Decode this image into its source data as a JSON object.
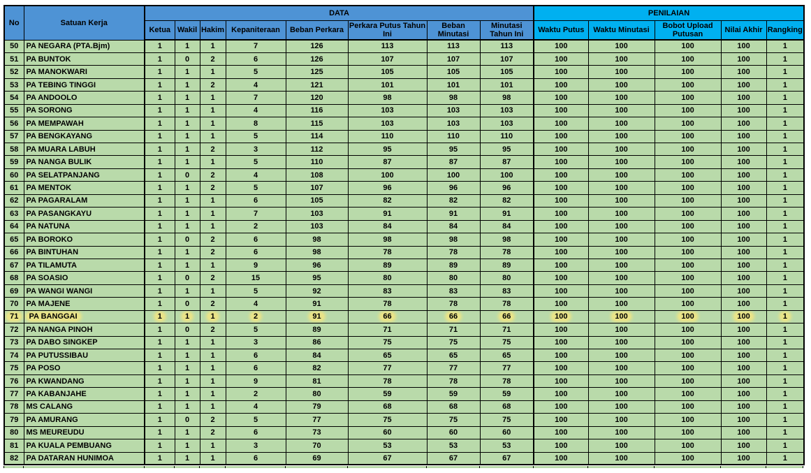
{
  "colors": {
    "header_blue": "#4E93D5",
    "penilaian_cyan": "#00B0F0",
    "row_green": "#B9DAAA",
    "highlight_yellow": "#E9E388",
    "border_black": "#000000"
  },
  "table": {
    "header": {
      "no": "No",
      "satuan_kerja": "Satuan Kerja",
      "data_group": "DATA",
      "penilaian_group": "PENILAIAN",
      "data_cols": [
        "Ketua",
        "Wakil",
        "Hakim",
        "Kepaniteraan",
        "Beban Perkara",
        "Perkara Putus Tahun Ini",
        "Beban Minutasi",
        "Minutasi Tahun Ini"
      ],
      "penilaian_cols": [
        "Waktu Putus",
        "Waktu Minutasi",
        "Bobot Upload Putusan",
        "Nilai Akhir",
        "Rangking"
      ]
    },
    "highlighted_row_no": "71",
    "rows": [
      {
        "no": "50",
        "satuan_kerja": "PA NEGARA (PTA.Bjm)",
        "values": [
          1,
          1,
          1,
          7,
          126,
          113,
          113,
          113,
          100,
          100,
          100,
          100,
          1
        ]
      },
      {
        "no": "51",
        "satuan_kerja": "PA BUNTOK",
        "values": [
          1,
          0,
          2,
          6,
          126,
          107,
          107,
          107,
          100,
          100,
          100,
          100,
          1
        ]
      },
      {
        "no": "52",
        "satuan_kerja": "PA MANOKWARI",
        "values": [
          1,
          1,
          1,
          5,
          125,
          105,
          105,
          105,
          100,
          100,
          100,
          100,
          1
        ]
      },
      {
        "no": "53",
        "satuan_kerja": "PA TEBING TINGGI",
        "values": [
          1,
          1,
          2,
          4,
          121,
          101,
          101,
          101,
          100,
          100,
          100,
          100,
          1
        ]
      },
      {
        "no": "54",
        "satuan_kerja": "PA ANDOOLO",
        "values": [
          1,
          1,
          1,
          7,
          120,
          98,
          98,
          98,
          100,
          100,
          100,
          100,
          1
        ]
      },
      {
        "no": "55",
        "satuan_kerja": "PA SORONG",
        "values": [
          1,
          1,
          1,
          4,
          116,
          103,
          103,
          103,
          100,
          100,
          100,
          100,
          1
        ]
      },
      {
        "no": "56",
        "satuan_kerja": "PA MEMPAWAH",
        "values": [
          1,
          1,
          1,
          8,
          115,
          103,
          103,
          103,
          100,
          100,
          100,
          100,
          1
        ]
      },
      {
        "no": "57",
        "satuan_kerja": "PA BENGKAYANG",
        "values": [
          1,
          1,
          1,
          5,
          114,
          110,
          110,
          110,
          100,
          100,
          100,
          100,
          1
        ]
      },
      {
        "no": "58",
        "satuan_kerja": "PA MUARA LABUH",
        "values": [
          1,
          1,
          2,
          3,
          112,
          95,
          95,
          95,
          100,
          100,
          100,
          100,
          1
        ]
      },
      {
        "no": "59",
        "satuan_kerja": "PA NANGA BULIK",
        "values": [
          1,
          1,
          1,
          5,
          110,
          87,
          87,
          87,
          100,
          100,
          100,
          100,
          1
        ]
      },
      {
        "no": "60",
        "satuan_kerja": "PA SELATPANJANG",
        "values": [
          1,
          0,
          2,
          4,
          108,
          100,
          100,
          100,
          100,
          100,
          100,
          100,
          1
        ]
      },
      {
        "no": "61",
        "satuan_kerja": "PA MENTOK",
        "values": [
          1,
          1,
          2,
          5,
          107,
          96,
          96,
          96,
          100,
          100,
          100,
          100,
          1
        ]
      },
      {
        "no": "62",
        "satuan_kerja": "PA PAGARALAM",
        "values": [
          1,
          1,
          1,
          6,
          105,
          82,
          82,
          82,
          100,
          100,
          100,
          100,
          1
        ]
      },
      {
        "no": "63",
        "satuan_kerja": "PA PASANGKAYU",
        "values": [
          1,
          1,
          1,
          7,
          103,
          91,
          91,
          91,
          100,
          100,
          100,
          100,
          1
        ]
      },
      {
        "no": "64",
        "satuan_kerja": "PA NATUNA",
        "values": [
          1,
          1,
          1,
          2,
          103,
          84,
          84,
          84,
          100,
          100,
          100,
          100,
          1
        ]
      },
      {
        "no": "65",
        "satuan_kerja": "PA BOROKO",
        "values": [
          1,
          0,
          2,
          6,
          98,
          98,
          98,
          98,
          100,
          100,
          100,
          100,
          1
        ]
      },
      {
        "no": "66",
        "satuan_kerja": "PA BINTUHAN",
        "values": [
          1,
          1,
          2,
          6,
          98,
          78,
          78,
          78,
          100,
          100,
          100,
          100,
          1
        ]
      },
      {
        "no": "67",
        "satuan_kerja": "PA TILAMUTA",
        "values": [
          1,
          1,
          1,
          9,
          96,
          89,
          89,
          89,
          100,
          100,
          100,
          100,
          1
        ]
      },
      {
        "no": "68",
        "satuan_kerja": "PA SOASIO",
        "values": [
          1,
          0,
          2,
          15,
          95,
          80,
          80,
          80,
          100,
          100,
          100,
          100,
          1
        ]
      },
      {
        "no": "69",
        "satuan_kerja": "PA WANGI WANGI",
        "values": [
          1,
          1,
          1,
          5,
          92,
          83,
          83,
          83,
          100,
          100,
          100,
          100,
          1
        ]
      },
      {
        "no": "70",
        "satuan_kerja": "PA MAJENE",
        "values": [
          1,
          0,
          2,
          4,
          91,
          78,
          78,
          78,
          100,
          100,
          100,
          100,
          1
        ]
      },
      {
        "no": "71",
        "satuan_kerja": "PA BANGGAI",
        "values": [
          1,
          1,
          1,
          2,
          91,
          66,
          66,
          66,
          100,
          100,
          100,
          100,
          1
        ]
      },
      {
        "no": "72",
        "satuan_kerja": "PA NANGA PINOH",
        "values": [
          1,
          0,
          2,
          5,
          89,
          71,
          71,
          71,
          100,
          100,
          100,
          100,
          1
        ]
      },
      {
        "no": "73",
        "satuan_kerja": "PA DABO SINGKEP",
        "values": [
          1,
          1,
          1,
          3,
          86,
          75,
          75,
          75,
          100,
          100,
          100,
          100,
          1
        ]
      },
      {
        "no": "74",
        "satuan_kerja": "PA PUTUSSIBAU",
        "values": [
          1,
          1,
          1,
          6,
          84,
          65,
          65,
          65,
          100,
          100,
          100,
          100,
          1
        ]
      },
      {
        "no": "75",
        "satuan_kerja": "PA POSO",
        "values": [
          1,
          1,
          1,
          6,
          82,
          77,
          77,
          77,
          100,
          100,
          100,
          100,
          1
        ]
      },
      {
        "no": "76",
        "satuan_kerja": "PA KWANDANG",
        "values": [
          1,
          1,
          1,
          9,
          81,
          78,
          78,
          78,
          100,
          100,
          100,
          100,
          1
        ]
      },
      {
        "no": "77",
        "satuan_kerja": "PA KABANJAHE",
        "values": [
          1,
          1,
          1,
          2,
          80,
          59,
          59,
          59,
          100,
          100,
          100,
          100,
          1
        ]
      },
      {
        "no": "78",
        "satuan_kerja": "MS CALANG",
        "values": [
          1,
          1,
          1,
          4,
          79,
          68,
          68,
          68,
          100,
          100,
          100,
          100,
          1
        ]
      },
      {
        "no": "79",
        "satuan_kerja": "PA AMURANG",
        "values": [
          1,
          0,
          2,
          5,
          77,
          75,
          75,
          75,
          100,
          100,
          100,
          100,
          1
        ]
      },
      {
        "no": "80",
        "satuan_kerja": "MS MEUREUDU",
        "values": [
          1,
          1,
          2,
          6,
          73,
          60,
          60,
          60,
          100,
          100,
          100,
          100,
          1
        ]
      },
      {
        "no": "81",
        "satuan_kerja": "PA KUALA PEMBUANG",
        "values": [
          1,
          1,
          1,
          3,
          70,
          53,
          53,
          53,
          100,
          100,
          100,
          100,
          1
        ]
      },
      {
        "no": "82",
        "satuan_kerja": "PA DATARAN HUNIMOA",
        "values": [
          1,
          1,
          1,
          6,
          69,
          67,
          67,
          67,
          100,
          100,
          100,
          100,
          1
        ]
      }
    ]
  }
}
